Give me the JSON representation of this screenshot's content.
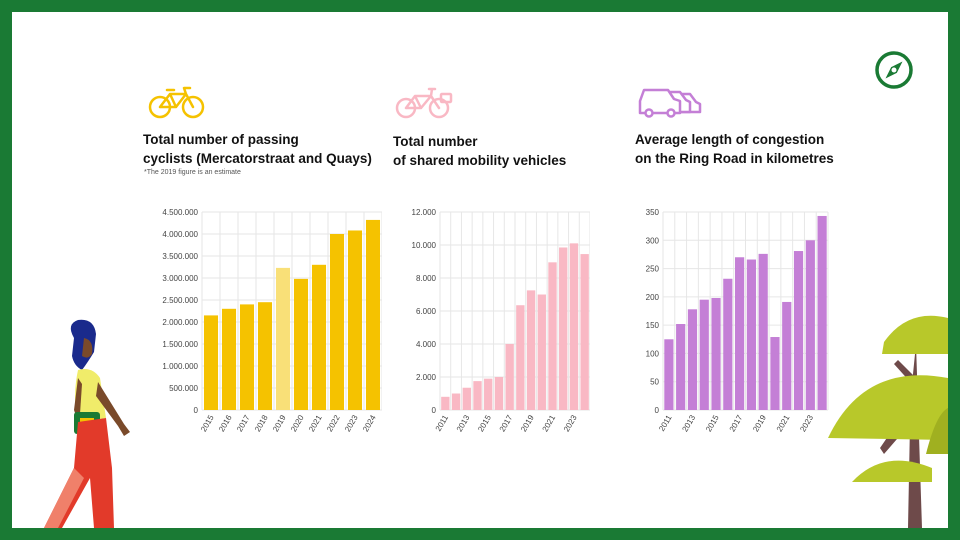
{
  "colors": {
    "frame": "#1a7a34",
    "yellow": "#f5c200",
    "yellow_estimate": "#f9e078",
    "pink": "#f9b8c4",
    "violet": "#c47fd6",
    "grid": "#e6e6e6"
  },
  "icons": [
    "bicycle-icon",
    "shared-bike-icon",
    "cars-icon",
    "compass-icon"
  ],
  "chart_data": [
    {
      "type": "bar",
      "title": "Total number of passing\ncyclists (Mercatorstraat and Quays)",
      "note": "*The 2019 figure is an estimate",
      "categories": [
        "2015",
        "2016",
        "2017",
        "2018",
        "2019",
        "2020",
        "2021",
        "2022",
        "2023",
        "2024"
      ],
      "values": [
        2150000,
        2300000,
        2400000,
        2450000,
        3230000,
        2980000,
        3300000,
        4000000,
        4080000,
        4320000
      ],
      "estimate_index": 4,
      "yticks": [
        "0",
        "500.000",
        "1.000.000",
        "1.500.000",
        "2.000.000",
        "2.500.000",
        "3.000.000",
        "3.500.000",
        "4.000.000",
        "4.500.000"
      ],
      "ylim": [
        0,
        4500000
      ],
      "color": "#f5c200"
    },
    {
      "type": "bar",
      "title": "Total number\nof shared mobility vehicles",
      "categories": [
        "2011",
        "2012",
        "2013",
        "2014",
        "2015",
        "2016",
        "2017",
        "2018",
        "2019",
        "2020",
        "2021",
        "2022",
        "2023",
        "2024"
      ],
      "xtick_labels": [
        "2011",
        "",
        "2013",
        "",
        "2015",
        "",
        "2017",
        "",
        "2019",
        "",
        "2021",
        "",
        "2023",
        ""
      ],
      "values": [
        800,
        1000,
        1350,
        1750,
        1900,
        2000,
        4000,
        6350,
        7250,
        7000,
        8950,
        9850,
        10100,
        9450
      ],
      "yticks": [
        "0",
        "2.000",
        "4.000",
        "6.000",
        "8.000",
        "10.000",
        "12.000"
      ],
      "ylim": [
        0,
        12000
      ],
      "color": "#f9b8c4"
    },
    {
      "type": "bar",
      "title": "Average length of congestion\non the Ring Road in kilometres",
      "categories": [
        "2011",
        "2012",
        "2013",
        "2014",
        "2015",
        "2016",
        "2017",
        "2018",
        "2019",
        "2020",
        "2021",
        "2022",
        "2023",
        "2024"
      ],
      "xtick_labels": [
        "2011",
        "",
        "2013",
        "",
        "2015",
        "",
        "2017",
        "",
        "2019",
        "",
        "2021",
        "",
        "2023",
        ""
      ],
      "values": [
        125,
        152,
        178,
        195,
        198,
        232,
        270,
        266,
        276,
        129,
        191,
        281,
        300,
        343
      ],
      "yticks": [
        "0",
        "50",
        "100",
        "150",
        "200",
        "250",
        "300",
        "350"
      ],
      "ylim": [
        0,
        350
      ],
      "color": "#c47fd6"
    }
  ]
}
